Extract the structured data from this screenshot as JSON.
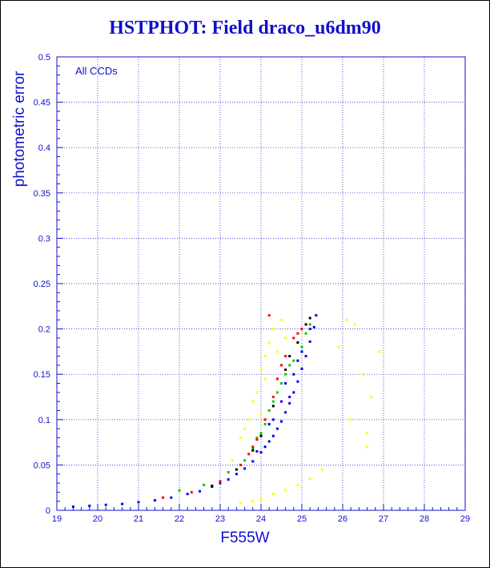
{
  "chart_data": {
    "type": "scatter",
    "title": "HSTPHOT: Field draco_u6dm90",
    "xlabel": "F555W",
    "ylabel": "photometric error",
    "annotation": "All CCDs",
    "xlim": [
      19,
      29
    ],
    "ylim": [
      0,
      0.5
    ],
    "xticks": [
      "19",
      "20",
      "21",
      "22",
      "23",
      "24",
      "25",
      "26",
      "27",
      "28",
      "29"
    ],
    "yticks": [
      "0",
      "0.05",
      "0.1",
      "0.15",
      "0.2",
      "0.25",
      "0.3",
      "0.35",
      "0.4",
      "0.45",
      "0.5"
    ],
    "grid": true,
    "series": [
      {
        "color": "#0000ff",
        "points": [
          [
            19.4,
            0.004
          ],
          [
            19.8,
            0.005
          ],
          [
            20.2,
            0.006
          ],
          [
            20.6,
            0.007
          ],
          [
            21.0,
            0.009
          ],
          [
            21.4,
            0.011
          ],
          [
            21.8,
            0.014
          ],
          [
            22.2,
            0.018
          ],
          [
            22.5,
            0.021
          ],
          [
            22.8,
            0.026
          ],
          [
            23.0,
            0.03
          ],
          [
            23.2,
            0.034
          ],
          [
            23.4,
            0.04
          ],
          [
            23.6,
            0.046
          ],
          [
            23.8,
            0.054
          ],
          [
            24.0,
            0.064
          ],
          [
            24.1,
            0.07
          ],
          [
            24.2,
            0.076
          ],
          [
            24.3,
            0.082
          ],
          [
            24.4,
            0.09
          ],
          [
            24.5,
            0.098
          ],
          [
            24.6,
            0.108
          ],
          [
            24.7,
            0.118
          ],
          [
            24.8,
            0.13
          ],
          [
            24.9,
            0.142
          ],
          [
            25.0,
            0.156
          ],
          [
            25.1,
            0.17
          ],
          [
            25.2,
            0.186
          ],
          [
            25.3,
            0.202
          ],
          [
            25.35,
            0.215
          ],
          [
            24.2,
            0.095
          ],
          [
            24.5,
            0.12
          ],
          [
            24.8,
            0.15
          ],
          [
            25.0,
            0.175
          ],
          [
            25.2,
            0.2
          ],
          [
            24.6,
            0.14
          ],
          [
            24.9,
            0.165
          ],
          [
            23.9,
            0.065
          ],
          [
            24.3,
            0.1
          ],
          [
            24.7,
            0.125
          ]
        ]
      },
      {
        "color": "#00cc00",
        "points": [
          [
            22.0,
            0.022
          ],
          [
            22.6,
            0.028
          ],
          [
            23.2,
            0.042
          ],
          [
            23.6,
            0.055
          ],
          [
            23.8,
            0.068
          ],
          [
            24.0,
            0.085
          ],
          [
            24.1,
            0.095
          ],
          [
            24.2,
            0.11
          ],
          [
            24.3,
            0.12
          ],
          [
            24.4,
            0.13
          ],
          [
            24.6,
            0.15
          ],
          [
            24.8,
            0.165
          ],
          [
            25.0,
            0.18
          ],
          [
            25.1,
            0.195
          ],
          [
            24.5,
            0.14
          ],
          [
            23.9,
            0.08
          ],
          [
            24.7,
            0.16
          ],
          [
            25.2,
            0.205
          ]
        ]
      },
      {
        "color": "#ff0000",
        "points": [
          [
            21.6,
            0.014
          ],
          [
            22.3,
            0.02
          ],
          [
            23.0,
            0.032
          ],
          [
            23.5,
            0.05
          ],
          [
            23.7,
            0.062
          ],
          [
            23.9,
            0.078
          ],
          [
            24.1,
            0.1
          ],
          [
            24.3,
            0.125
          ],
          [
            24.4,
            0.145
          ],
          [
            24.6,
            0.17
          ],
          [
            24.8,
            0.19
          ],
          [
            25.0,
            0.2
          ],
          [
            24.2,
            0.215
          ],
          [
            23.8,
            0.07
          ],
          [
            24.5,
            0.16
          ],
          [
            24.9,
            0.195
          ]
        ]
      },
      {
        "color": "#000000",
        "points": [
          [
            22.8,
            0.027
          ],
          [
            23.4,
            0.045
          ],
          [
            23.8,
            0.066
          ],
          [
            24.0,
            0.082
          ],
          [
            24.3,
            0.115
          ],
          [
            24.6,
            0.155
          ],
          [
            24.9,
            0.185
          ],
          [
            25.1,
            0.205
          ],
          [
            25.2,
            0.212
          ],
          [
            24.7,
            0.17
          ]
        ]
      },
      {
        "color": "#ffff00",
        "points": [
          [
            23.3,
            0.055
          ],
          [
            23.5,
            0.08
          ],
          [
            23.7,
            0.1
          ],
          [
            23.9,
            0.13
          ],
          [
            24.0,
            0.155
          ],
          [
            24.1,
            0.17
          ],
          [
            24.2,
            0.185
          ],
          [
            24.3,
            0.2
          ],
          [
            24.5,
            0.21
          ],
          [
            24.1,
            0.145
          ],
          [
            23.8,
            0.12
          ],
          [
            24.0,
            0.105
          ],
          [
            23.6,
            0.09
          ],
          [
            24.4,
            0.175
          ],
          [
            24.6,
            0.19
          ],
          [
            23.5,
            0.008
          ],
          [
            23.8,
            0.01
          ],
          [
            24.0,
            0.012
          ],
          [
            24.3,
            0.018
          ],
          [
            24.6,
            0.022
          ],
          [
            24.9,
            0.028
          ],
          [
            25.2,
            0.035
          ],
          [
            25.5,
            0.045
          ],
          [
            26.1,
            0.21
          ],
          [
            26.2,
            0.1
          ],
          [
            26.5,
            0.15
          ],
          [
            26.6,
            0.085
          ],
          [
            26.7,
            0.125
          ],
          [
            26.9,
            0.175
          ],
          [
            26.3,
            0.205
          ],
          [
            25.9,
            0.18
          ],
          [
            26.6,
            0.07
          ]
        ]
      }
    ]
  }
}
